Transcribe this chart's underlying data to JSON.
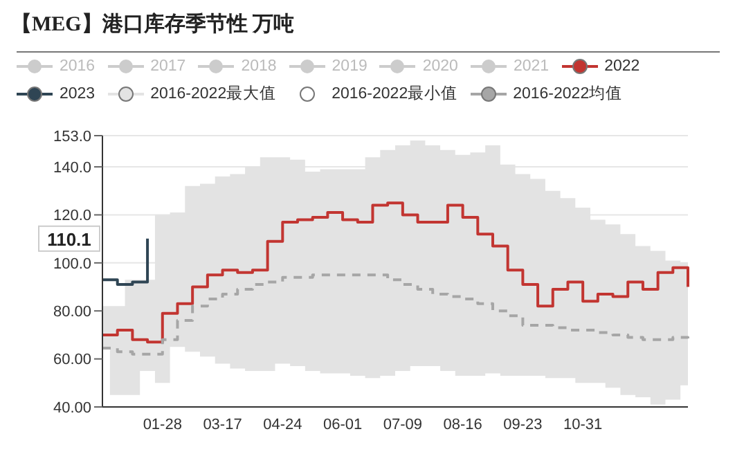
{
  "chart_data": {
    "type": "step",
    "title": "【MEG】港口库存季节性 万吨",
    "categories": [
      null,
      null,
      null,
      null,
      "01-28",
      null,
      null,
      null,
      "03-17",
      null,
      null,
      null,
      "04-24",
      null,
      null,
      null,
      "06-01",
      null,
      null,
      null,
      "07-09",
      null,
      null,
      null,
      "08-16",
      null,
      null,
      null,
      "09-23",
      null,
      null,
      null,
      "10-31",
      null,
      null,
      null,
      null,
      null,
      null,
      null
    ],
    "series": [
      {
        "name": "2016",
        "color": "#cccccc",
        "values": [
          null,
          null,
          null,
          null,
          null,
          null,
          null,
          null,
          null,
          null,
          null,
          null,
          null,
          null,
          null,
          null,
          null,
          null,
          null,
          null,
          null,
          null,
          null,
          null,
          null,
          null,
          null,
          null,
          null,
          null,
          null,
          null,
          null,
          null,
          null,
          null,
          null,
          null,
          null,
          null
        ]
      },
      {
        "name": "2017",
        "color": "#cccccc",
        "values": [
          null,
          null,
          null,
          null,
          null,
          null,
          null,
          null,
          null,
          null,
          null,
          null,
          null,
          null,
          null,
          null,
          null,
          null,
          null,
          null,
          null,
          null,
          null,
          null,
          null,
          null,
          null,
          null,
          null,
          null,
          null,
          null,
          null,
          null,
          null,
          null,
          null,
          null,
          null,
          null
        ]
      },
      {
        "name": "2018",
        "color": "#cccccc",
        "values": [
          null,
          null,
          null,
          null,
          null,
          null,
          null,
          null,
          null,
          null,
          null,
          null,
          null,
          null,
          null,
          null,
          null,
          null,
          null,
          null,
          null,
          null,
          null,
          null,
          null,
          null,
          null,
          null,
          null,
          null,
          null,
          null,
          null,
          null,
          null,
          null,
          null,
          null,
          null,
          null
        ]
      },
      {
        "name": "2019",
        "color": "#cccccc",
        "values": [
          null,
          null,
          null,
          null,
          null,
          null,
          null,
          null,
          null,
          null,
          null,
          null,
          null,
          null,
          null,
          null,
          null,
          null,
          null,
          null,
          null,
          null,
          null,
          null,
          null,
          null,
          null,
          null,
          null,
          null,
          null,
          null,
          null,
          null,
          null,
          null,
          null,
          null,
          null,
          null
        ]
      },
      {
        "name": "2020",
        "color": "#cccccc",
        "values": [
          null,
          null,
          null,
          null,
          null,
          null,
          null,
          null,
          null,
          null,
          null,
          null,
          null,
          null,
          null,
          null,
          null,
          null,
          null,
          null,
          null,
          null,
          null,
          null,
          null,
          null,
          null,
          null,
          null,
          null,
          null,
          null,
          null,
          null,
          null,
          null,
          null,
          null,
          null,
          null
        ]
      },
      {
        "name": "2021",
        "color": "#cccccc",
        "values": [
          null,
          null,
          null,
          null,
          null,
          null,
          null,
          null,
          null,
          null,
          null,
          null,
          null,
          null,
          null,
          null,
          null,
          null,
          null,
          null,
          null,
          null,
          null,
          null,
          null,
          null,
          null,
          null,
          null,
          null,
          null,
          null,
          null,
          null,
          null,
          null,
          null,
          null,
          null,
          null
        ]
      },
      {
        "name": "2022",
        "color": "#c23531",
        "values": [
          70,
          72,
          68,
          67,
          79,
          83,
          90,
          95,
          97,
          96,
          97,
          109,
          117,
          118,
          119,
          121,
          118,
          117,
          124,
          125,
          120,
          117,
          117,
          124,
          119,
          112,
          107,
          97,
          91,
          82,
          89,
          92,
          84,
          87,
          86,
          92,
          89,
          96,
          98,
          90
        ]
      },
      {
        "name": "2023",
        "color": "#2f4554",
        "values": [
          93,
          91,
          92,
          110.1,
          null,
          null,
          null,
          null,
          null,
          null,
          null,
          null,
          null,
          null,
          null,
          null,
          null,
          null,
          null,
          null,
          null,
          null,
          null,
          null,
          null,
          null,
          null,
          null,
          null,
          null,
          null,
          null,
          null,
          null,
          null,
          null,
          null,
          null,
          null,
          null
        ]
      },
      {
        "name": "2016-2022最大值",
        "type": "area",
        "color": "#e3e3e3",
        "values": [
          82,
          82,
          93,
          93,
          120,
          121,
          132,
          133,
          136,
          137,
          140,
          144,
          144,
          143,
          138,
          139,
          139,
          139,
          144,
          147,
          149,
          151,
          149,
          147,
          145,
          146,
          149,
          141,
          137,
          135,
          130,
          127,
          123,
          118,
          116,
          112,
          107,
          105,
          101,
          100
        ]
      },
      {
        "name": "2016-2022最小值",
        "type": "area",
        "color": "#ffffff",
        "values": [
          64,
          45,
          45,
          55,
          50,
          65,
          63,
          61,
          58,
          56,
          55,
          55,
          58,
          57,
          55,
          54,
          54,
          53,
          52,
          53,
          55,
          57,
          57,
          55,
          53,
          53,
          54,
          53,
          53,
          53,
          52,
          52,
          50,
          50,
          48,
          45,
          44,
          41,
          43,
          49
        ]
      },
      {
        "name": "2016-2022均值",
        "color": "#a6a6a6",
        "line_style": "dashed",
        "values": [
          64.5,
          63,
          62,
          62,
          68,
          76,
          82,
          85,
          87,
          89,
          91,
          92,
          94,
          94,
          95,
          95,
          95,
          95,
          95,
          93,
          91,
          89,
          87,
          86,
          85,
          83,
          80,
          78,
          74,
          74,
          73,
          72,
          72,
          71,
          70,
          69,
          68,
          68,
          69,
          68
        ]
      }
    ],
    "ylim": [
      40,
      153
    ],
    "yticks": [
      {
        "value": 40,
        "label": "40.00"
      },
      {
        "value": 60,
        "label": "60.00"
      },
      {
        "value": 80,
        "label": "80.00"
      },
      {
        "value": 100,
        "label": "100.0"
      },
      {
        "value": 120,
        "label": "120.0"
      },
      {
        "value": 140,
        "label": "140.0"
      },
      {
        "value": 153,
        "label": "153.0"
      }
    ],
    "annotations": [
      {
        "text": "110.1",
        "y": 110.1
      }
    ],
    "grid": "y",
    "legend": "top",
    "marker": "none"
  }
}
